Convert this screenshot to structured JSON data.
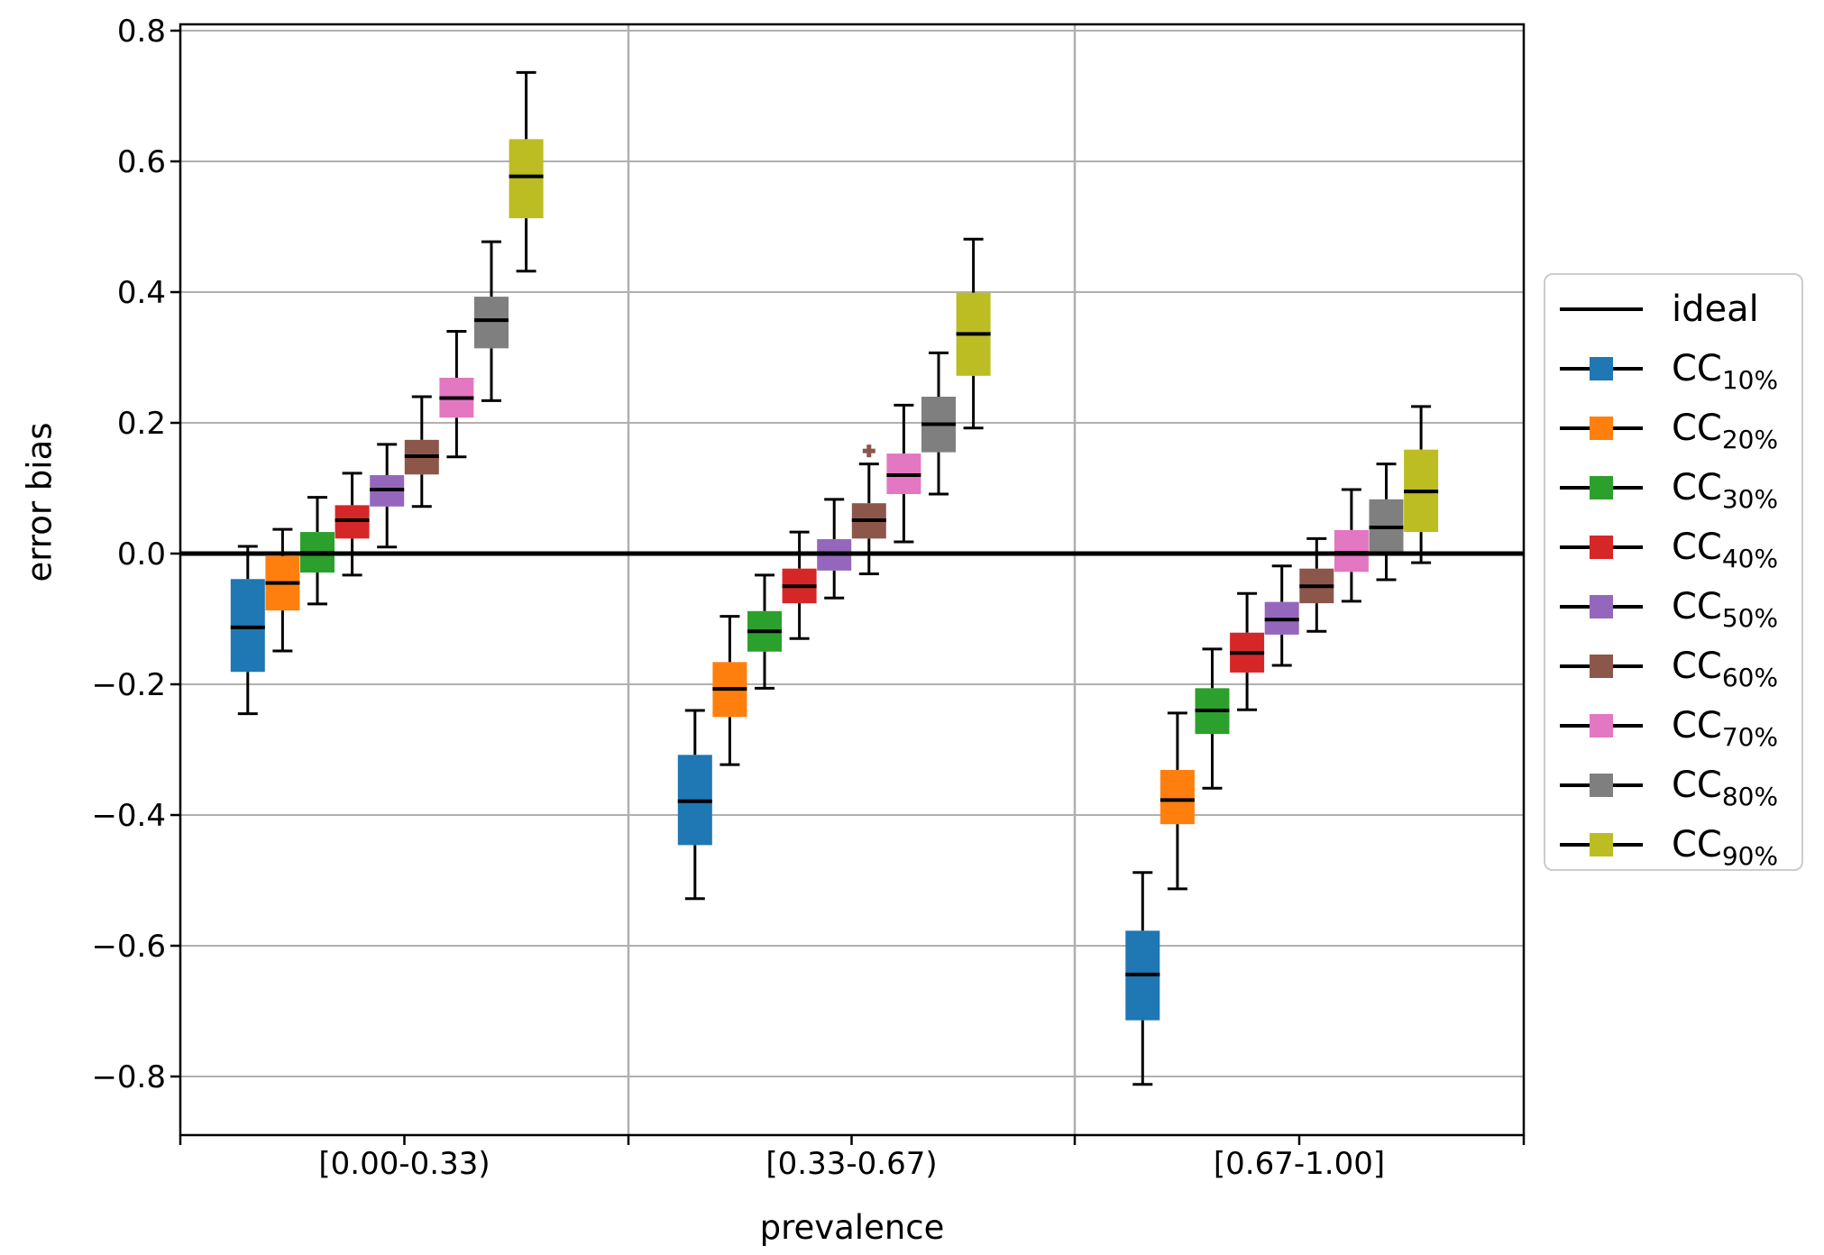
{
  "chart_data": {
    "type": "boxplot",
    "title": "",
    "xlabel": "prevalence",
    "ylabel": "error bias",
    "categories": [
      "[0.00-0.33)",
      "[0.33-0.67)",
      "[0.67-1.00]"
    ],
    "ytick_labels": [
      "0.8",
      "0.6",
      "0.4",
      "0.2",
      "0.0",
      "−0.2",
      "−0.4",
      "−0.6",
      "−0.8"
    ],
    "ytick_values": [
      0.8,
      0.6,
      0.4,
      0.2,
      0.0,
      -0.2,
      -0.4,
      -0.6,
      -0.8
    ],
    "ylim": [
      -0.89,
      0.81
    ],
    "grid": true,
    "legend_position": "right",
    "ideal_label": "ideal",
    "ideal_value": 0.0,
    "grid_color": "#b0b0b0",
    "axis_color": "#000000",
    "series": [
      {
        "label": "CC",
        "sub": "10%",
        "color": "#1f77b4",
        "boxes": [
          {
            "whislo": -0.245,
            "q1": -0.181,
            "med": -0.113,
            "q3": -0.039,
            "whishi": 0.011,
            "fliers": []
          },
          {
            "whislo": -0.528,
            "q1": -0.446,
            "med": -0.379,
            "q3": -0.308,
            "whishi": -0.24,
            "fliers": []
          },
          {
            "whislo": -0.812,
            "q1": -0.714,
            "med": -0.644,
            "q3": -0.577,
            "whishi": -0.488,
            "fliers": []
          }
        ]
      },
      {
        "label": "CC",
        "sub": "20%",
        "color": "#ff7f0e",
        "boxes": [
          {
            "whislo": -0.149,
            "q1": -0.087,
            "med": -0.045,
            "q3": -0.004,
            "whishi": 0.037,
            "fliers": []
          },
          {
            "whislo": -0.323,
            "q1": -0.25,
            "med": -0.207,
            "q3": -0.166,
            "whishi": -0.096,
            "fliers": []
          },
          {
            "whislo": -0.513,
            "q1": -0.414,
            "med": -0.377,
            "q3": -0.331,
            "whishi": -0.244,
            "fliers": []
          }
        ]
      },
      {
        "label": "CC",
        "sub": "30%",
        "color": "#2ca02c",
        "boxes": [
          {
            "whislo": -0.077,
            "q1": -0.029,
            "med": 0.001,
            "q3": 0.033,
            "whishi": 0.086,
            "fliers": []
          },
          {
            "whislo": -0.206,
            "q1": -0.15,
            "med": -0.119,
            "q3": -0.088,
            "whishi": -0.033,
            "fliers": []
          },
          {
            "whislo": -0.359,
            "q1": -0.276,
            "med": -0.24,
            "q3": -0.206,
            "whishi": -0.146,
            "fliers": []
          }
        ]
      },
      {
        "label": "CC",
        "sub": "40%",
        "color": "#d62728",
        "boxes": [
          {
            "whislo": -0.033,
            "q1": 0.023,
            "med": 0.051,
            "q3": 0.074,
            "whishi": 0.123,
            "fliers": []
          },
          {
            "whislo": -0.13,
            "q1": -0.076,
            "med": -0.05,
            "q3": -0.023,
            "whishi": 0.033,
            "fliers": []
          },
          {
            "whislo": -0.239,
            "q1": -0.182,
            "med": -0.152,
            "q3": -0.121,
            "whishi": -0.061,
            "fliers": []
          }
        ]
      },
      {
        "label": "CC",
        "sub": "50%",
        "color": "#9467bd",
        "boxes": [
          {
            "whislo": 0.01,
            "q1": 0.072,
            "med": 0.098,
            "q3": 0.12,
            "whishi": 0.167,
            "fliers": []
          },
          {
            "whislo": -0.068,
            "q1": -0.026,
            "med": 0.0,
            "q3": 0.022,
            "whishi": 0.083,
            "fliers": []
          },
          {
            "whislo": -0.171,
            "q1": -0.124,
            "med": -0.101,
            "q3": -0.074,
            "whishi": -0.019,
            "fliers": []
          }
        ]
      },
      {
        "label": "CC",
        "sub": "60%",
        "color": "#8c564b",
        "boxes": [
          {
            "whislo": 0.072,
            "q1": 0.121,
            "med": 0.149,
            "q3": 0.174,
            "whishi": 0.24,
            "fliers": []
          },
          {
            "whislo": -0.031,
            "q1": 0.023,
            "med": 0.051,
            "q3": 0.077,
            "whishi": 0.137,
            "fliers": [
              0.157
            ]
          },
          {
            "whislo": -0.119,
            "q1": -0.076,
            "med": -0.05,
            "q3": -0.023,
            "whishi": 0.023,
            "fliers": []
          }
        ]
      },
      {
        "label": "CC",
        "sub": "70%",
        "color": "#e377c2",
        "boxes": [
          {
            "whislo": 0.148,
            "q1": 0.208,
            "med": 0.238,
            "q3": 0.269,
            "whishi": 0.34,
            "fliers": []
          },
          {
            "whislo": 0.018,
            "q1": 0.091,
            "med": 0.12,
            "q3": 0.153,
            "whishi": 0.227,
            "fliers": []
          },
          {
            "whislo": -0.073,
            "q1": -0.028,
            "med": 0.001,
            "q3": 0.036,
            "whishi": 0.098,
            "fliers": []
          }
        ]
      },
      {
        "label": "CC",
        "sub": "80%",
        "color": "#7f7f7f",
        "boxes": [
          {
            "whislo": 0.234,
            "q1": 0.314,
            "med": 0.357,
            "q3": 0.393,
            "whishi": 0.477,
            "fliers": []
          },
          {
            "whislo": 0.091,
            "q1": 0.155,
            "med": 0.198,
            "q3": 0.24,
            "whishi": 0.307,
            "fliers": []
          },
          {
            "whislo": -0.04,
            "q1": 0.0,
            "med": 0.04,
            "q3": 0.083,
            "whishi": 0.137,
            "fliers": []
          }
        ]
      },
      {
        "label": "CC",
        "sub": "90%",
        "color": "#bcbd22",
        "boxes": [
          {
            "whislo": 0.432,
            "q1": 0.513,
            "med": 0.577,
            "q3": 0.634,
            "whishi": 0.736,
            "fliers": []
          },
          {
            "whislo": 0.192,
            "q1": 0.272,
            "med": 0.336,
            "q3": 0.399,
            "whishi": 0.481,
            "fliers": []
          },
          {
            "whislo": -0.014,
            "q1": 0.033,
            "med": 0.095,
            "q3": 0.159,
            "whishi": 0.225,
            "fliers": []
          }
        ]
      }
    ]
  }
}
